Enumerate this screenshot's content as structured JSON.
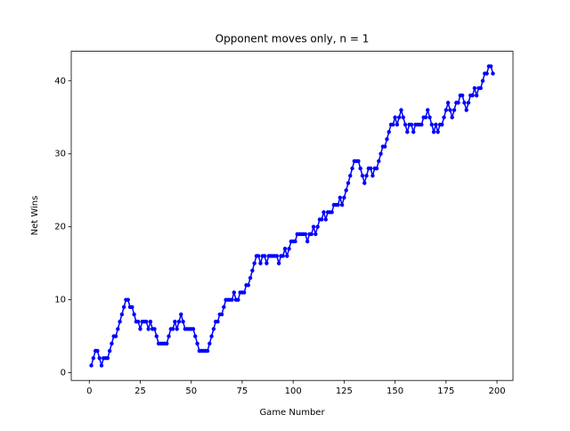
{
  "chart_data": {
    "type": "line",
    "title": "Opponent moves only, n = 1",
    "xlabel": "Game Number",
    "ylabel": "Net Wins",
    "x": [
      1,
      2,
      3,
      4,
      5,
      6,
      7,
      8,
      9,
      10,
      11,
      12,
      13,
      14,
      15,
      16,
      17,
      18,
      19,
      20,
      21,
      22,
      23,
      24,
      25,
      26,
      27,
      28,
      29,
      30,
      31,
      32,
      33,
      34,
      35,
      36,
      37,
      38,
      39,
      40,
      41,
      42,
      43,
      44,
      45,
      46,
      47,
      48,
      49,
      50,
      51,
      52,
      53,
      54,
      55,
      56,
      57,
      58,
      59,
      60,
      61,
      62,
      63,
      64,
      65,
      66,
      67,
      68,
      69,
      70,
      71,
      72,
      73,
      74,
      75,
      76,
      77,
      78,
      79,
      80,
      81,
      82,
      83,
      84,
      85,
      86,
      87,
      88,
      89,
      90,
      91,
      92,
      93,
      94,
      95,
      96,
      97,
      98,
      99,
      100,
      101,
      102,
      103,
      104,
      105,
      106,
      107,
      108,
      109,
      110,
      111,
      112,
      113,
      114,
      115,
      116,
      117,
      118,
      119,
      120,
      121,
      122,
      123,
      124,
      125,
      126,
      127,
      128,
      129,
      130,
      131,
      132,
      133,
      134,
      135,
      136,
      137,
      138,
      139,
      140,
      141,
      142,
      143,
      144,
      145,
      146,
      147,
      148,
      149,
      150,
      151,
      152,
      153,
      154,
      155,
      156,
      157,
      158,
      159,
      160,
      161,
      162,
      163,
      164,
      165,
      166,
      167,
      168,
      169,
      170,
      171,
      172,
      173,
      174,
      175,
      176,
      177,
      178,
      179,
      180,
      181,
      182,
      183,
      184,
      185,
      186,
      187,
      188,
      189,
      190,
      191,
      192,
      193,
      194,
      195,
      196,
      197,
      198
    ],
    "series": [
      {
        "color": "#0000ff",
        "values": [
          1,
          2,
          3,
          3,
          2,
          1,
          2,
          2,
          2,
          3,
          4,
          5,
          5,
          6,
          7,
          8,
          9,
          10,
          10,
          9,
          9,
          8,
          7,
          7,
          6,
          7,
          7,
          7,
          6,
          7,
          6,
          6,
          5,
          4,
          4,
          4,
          4,
          4,
          5,
          6,
          6,
          7,
          6,
          7,
          8,
          7,
          6,
          6,
          6,
          6,
          6,
          5,
          4,
          3,
          3,
          3,
          3,
          3,
          4,
          5,
          6,
          7,
          7,
          8,
          8,
          9,
          10,
          10,
          10,
          10,
          11,
          10,
          10,
          11,
          11,
          11,
          12,
          12,
          13,
          14,
          15,
          16,
          16,
          15,
          16,
          16,
          15,
          16,
          16,
          16,
          16,
          16,
          15,
          16,
          16,
          17,
          16,
          17,
          18,
          18,
          18,
          19,
          19,
          19,
          19,
          19,
          18,
          19,
          19,
          20,
          19,
          20,
          21,
          21,
          22,
          21,
          22,
          22,
          22,
          23,
          23,
          23,
          24,
          23,
          24,
          25,
          26,
          27,
          28,
          29,
          29,
          29,
          28,
          27,
          26,
          27,
          28,
          28,
          27,
          28,
          28,
          29,
          30,
          31,
          31,
          32,
          33,
          34,
          34,
          35,
          34,
          35,
          36,
          35,
          34,
          33,
          34,
          34,
          33,
          34,
          34,
          34,
          34,
          35,
          35,
          36,
          35,
          34,
          33,
          34,
          33,
          34,
          34,
          35,
          36,
          37,
          36,
          35,
          36,
          37,
          37,
          38,
          38,
          37,
          36,
          37,
          38,
          38,
          39,
          38,
          39,
          39,
          40,
          41,
          41,
          42,
          42,
          41
        ]
      }
    ],
    "xlim": [
      -8.85,
      207.85
    ],
    "ylim": [
      -1.05,
      44.05
    ],
    "xticks": [
      0,
      25,
      50,
      75,
      100,
      125,
      150,
      175,
      200
    ],
    "yticks": [
      0,
      10,
      20,
      30,
      40
    ]
  }
}
